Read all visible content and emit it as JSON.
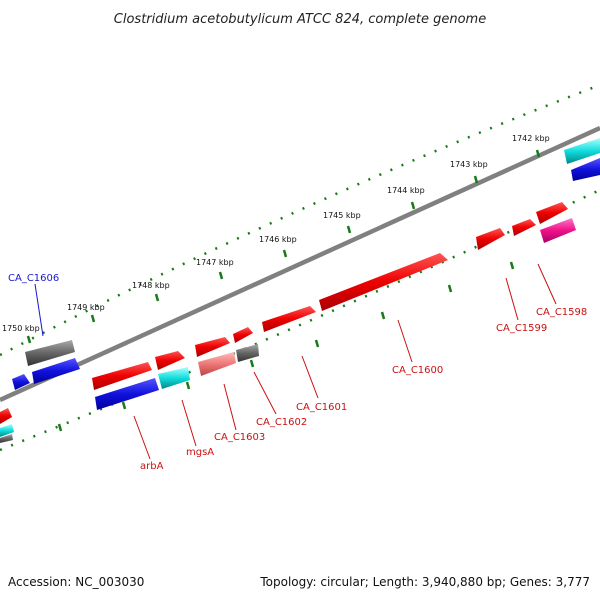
{
  "title": "Clostridium acetobutylicum ATCC 824, complete genome",
  "accession": "Accession: NC_003030",
  "stats": "Topology: circular; Length: 3,940,880 bp; Genes: 3,777",
  "ticks": [
    "1742 kbp",
    "1743 kbp",
    "1744 kbp",
    "1745 kbp",
    "1746 kbp",
    "1747 kbp",
    "1748 kbp",
    "1749 kbp",
    "1750 kbp"
  ],
  "genes": [
    {
      "label": "CA_C1606",
      "color": "#1a1acc"
    },
    {
      "label": "arbA",
      "color": "#cc1111"
    },
    {
      "label": "mgsA",
      "color": "#cc1111"
    },
    {
      "label": "CA_C1603",
      "color": "#cc1111"
    },
    {
      "label": "CA_C1602",
      "color": "#cc1111"
    },
    {
      "label": "CA_C1601",
      "color": "#cc1111"
    },
    {
      "label": "CA_C1600",
      "color": "#cc1111"
    },
    {
      "label": "CA_C1599",
      "color": "#cc1111"
    },
    {
      "label": "CA_C1598",
      "color": "#cc1111"
    }
  ],
  "colors": {
    "backbone": "#808080",
    "tick": "#1a7a1a",
    "red": "#ee1111",
    "blue": "#1111dd",
    "cyan": "#11cccc",
    "gray": "#666666",
    "pink": "#ee7777",
    "magenta": "#ee1188"
  }
}
